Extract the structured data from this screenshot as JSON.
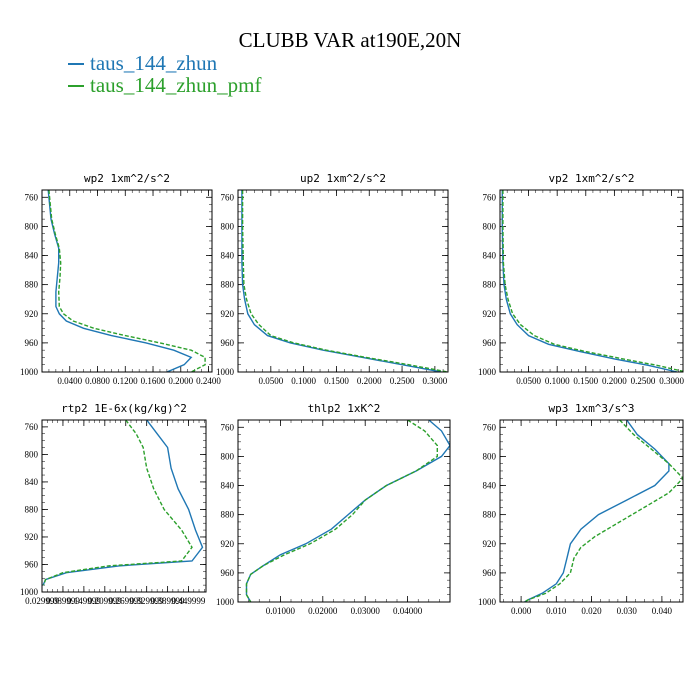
{
  "figure": {
    "title": "CLUBB VAR at190E,20N",
    "legend": [
      {
        "label": "taus_144_zhun",
        "color": "#1f77b4",
        "style": "solid"
      },
      {
        "label": "taus_144_zhun_pmf",
        "color": "#2ca02c",
        "style": "dashed"
      }
    ]
  },
  "chart_data": [
    {
      "type": "line",
      "title": "wp2  1xm^2/s^2",
      "xlim": [
        0.0,
        0.245
      ],
      "ylim": [
        1000,
        750
      ],
      "y_ticks": [
        "760",
        "800",
        "840",
        "880",
        "920",
        "960",
        "1000"
      ],
      "y_tick_values": [
        760,
        800,
        840,
        880,
        920,
        960,
        1000
      ],
      "x_ticks": [
        "0.0400",
        "0.0800",
        "0.1200",
        "0.1600",
        "0.2000",
        "0.2400"
      ],
      "x_tick_values": [
        0.04,
        0.08,
        0.12,
        0.16,
        0.2,
        0.24
      ],
      "series": [
        {
          "name": "taus_144_zhun",
          "color": "#1f77b4",
          "dash": false,
          "points": [
            [
              0.009,
              750
            ],
            [
              0.011,
              770
            ],
            [
              0.013,
              790
            ],
            [
              0.018,
              810
            ],
            [
              0.024,
              830
            ],
            [
              0.024,
              850
            ],
            [
              0.022,
              870
            ],
            [
              0.02,
              890
            ],
            [
              0.02,
              910
            ],
            [
              0.025,
              920
            ],
            [
              0.035,
              930
            ],
            [
              0.06,
              940
            ],
            [
              0.1,
              950
            ],
            [
              0.15,
              960
            ],
            [
              0.19,
              970
            ],
            [
              0.215,
              980
            ],
            [
              0.205,
              990
            ],
            [
              0.18,
              1000
            ]
          ]
        },
        {
          "name": "taus_144_zhun_pmf",
          "color": "#2ca02c",
          "dash": true,
          "points": [
            [
              0.01,
              750
            ],
            [
              0.012,
              770
            ],
            [
              0.014,
              790
            ],
            [
              0.019,
              810
            ],
            [
              0.025,
              830
            ],
            [
              0.027,
              850
            ],
            [
              0.026,
              870
            ],
            [
              0.024,
              890
            ],
            [
              0.025,
              910
            ],
            [
              0.031,
              920
            ],
            [
              0.045,
              930
            ],
            [
              0.075,
              940
            ],
            [
              0.12,
              950
            ],
            [
              0.17,
              960
            ],
            [
              0.215,
              970
            ],
            [
              0.235,
              980
            ],
            [
              0.235,
              990
            ],
            [
              0.215,
              1000
            ]
          ]
        }
      ]
    },
    {
      "type": "line",
      "title": "up2  1xm^2/s^2",
      "xlim": [
        0.0,
        0.32
      ],
      "ylim": [
        1000,
        750
      ],
      "y_ticks": [
        "760",
        "800",
        "840",
        "880",
        "920",
        "960",
        "1000"
      ],
      "y_tick_values": [
        760,
        800,
        840,
        880,
        920,
        960,
        1000
      ],
      "x_ticks": [
        "0.0500",
        "0.1000",
        "0.1500",
        "0.2000",
        "0.2500",
        "0.3000"
      ],
      "x_tick_values": [
        0.05,
        0.1,
        0.15,
        0.2,
        0.25,
        0.3
      ],
      "series": [
        {
          "name": "taus_144_zhun",
          "color": "#1f77b4",
          "dash": false,
          "points": [
            [
              0.006,
              750
            ],
            [
              0.006,
              800
            ],
            [
              0.006,
              850
            ],
            [
              0.007,
              880
            ],
            [
              0.01,
              900
            ],
            [
              0.015,
              920
            ],
            [
              0.025,
              935
            ],
            [
              0.045,
              950
            ],
            [
              0.08,
              960
            ],
            [
              0.13,
              970
            ],
            [
              0.19,
              980
            ],
            [
              0.25,
              990
            ],
            [
              0.31,
              1000
            ]
          ]
        },
        {
          "name": "taus_144_zhun_pmf",
          "color": "#2ca02c",
          "dash": true,
          "points": [
            [
              0.007,
              750
            ],
            [
              0.007,
              800
            ],
            [
              0.008,
              850
            ],
            [
              0.009,
              880
            ],
            [
              0.013,
              900
            ],
            [
              0.02,
              920
            ],
            [
              0.032,
              935
            ],
            [
              0.05,
              950
            ],
            [
              0.085,
              960
            ],
            [
              0.135,
              970
            ],
            [
              0.195,
              980
            ],
            [
              0.26,
              990
            ],
            [
              0.32,
              1000
            ]
          ]
        }
      ]
    },
    {
      "type": "line",
      "title": "vp2  1xm^2/s^2",
      "xlim": [
        0.0,
        0.32
      ],
      "ylim": [
        1000,
        750
      ],
      "y_ticks": [
        "760",
        "800",
        "840",
        "880",
        "920",
        "960",
        "1000"
      ],
      "y_tick_values": [
        760,
        800,
        840,
        880,
        920,
        960,
        1000
      ],
      "x_ticks": [
        "0.0500",
        "0.1000",
        "0.1500",
        "0.2000",
        "0.2500",
        "0.3000"
      ],
      "x_tick_values": [
        0.05,
        0.1,
        0.15,
        0.2,
        0.25,
        0.3
      ],
      "series": [
        {
          "name": "taus_144_zhun",
          "color": "#1f77b4",
          "dash": false,
          "points": [
            [
              0.004,
              750
            ],
            [
              0.004,
              800
            ],
            [
              0.005,
              850
            ],
            [
              0.007,
              880
            ],
            [
              0.011,
              900
            ],
            [
              0.018,
              920
            ],
            [
              0.03,
              935
            ],
            [
              0.05,
              950
            ],
            [
              0.085,
              962
            ],
            [
              0.14,
              972
            ],
            [
              0.2,
              982
            ],
            [
              0.26,
              991
            ],
            [
              0.31,
              1000
            ]
          ]
        },
        {
          "name": "taus_144_zhun_pmf",
          "color": "#2ca02c",
          "dash": true,
          "points": [
            [
              0.005,
              750
            ],
            [
              0.005,
              800
            ],
            [
              0.006,
              850
            ],
            [
              0.009,
              880
            ],
            [
              0.014,
              900
            ],
            [
              0.022,
              920
            ],
            [
              0.036,
              935
            ],
            [
              0.06,
              950
            ],
            [
              0.095,
              962
            ],
            [
              0.15,
              972
            ],
            [
              0.215,
              982
            ],
            [
              0.275,
              991
            ],
            [
              0.325,
              1000
            ]
          ]
        }
      ]
    },
    {
      "type": "line",
      "title": "rtp2  1E-6x(kg/kg)^2",
      "xlim": [
        0.02999,
        0.49999
      ],
      "ylim": [
        1000,
        750
      ],
      "y_ticks": [
        "760",
        "800",
        "840",
        "880",
        "920",
        "960",
        "1000"
      ],
      "y_tick_values": [
        760,
        800,
        840,
        880,
        920,
        960,
        1000
      ],
      "x_ticks": [
        "0.029999",
        "0.089999",
        "0.149999",
        "0.209999",
        "0.269999",
        "0.329999",
        "0.389999",
        "0.449999"
      ],
      "x_tick_values": [
        0.029999,
        0.089999,
        0.149999,
        0.209999,
        0.269999,
        0.329999,
        0.389999,
        0.449999
      ],
      "series": [
        {
          "name": "taus_144_zhun",
          "color": "#1f77b4",
          "dash": false,
          "points": [
            [
              0.33,
              750
            ],
            [
              0.36,
              770
            ],
            [
              0.39,
              790
            ],
            [
              0.4,
              820
            ],
            [
              0.42,
              850
            ],
            [
              0.45,
              880
            ],
            [
              0.47,
              910
            ],
            [
              0.49,
              935
            ],
            [
              0.46,
              955
            ],
            [
              0.25,
              962
            ],
            [
              0.1,
              972
            ],
            [
              0.04,
              982
            ],
            [
              0.033,
              990
            ]
          ]
        },
        {
          "name": "taus_144_zhun_pmf",
          "color": "#2ca02c",
          "dash": true,
          "points": [
            [
              0.27,
              750
            ],
            [
              0.3,
              770
            ],
            [
              0.32,
              790
            ],
            [
              0.33,
              820
            ],
            [
              0.35,
              850
            ],
            [
              0.38,
              880
            ],
            [
              0.43,
              910
            ],
            [
              0.46,
              935
            ],
            [
              0.43,
              955
            ],
            [
              0.22,
              962
            ],
            [
              0.09,
              972
            ],
            [
              0.04,
              982
            ],
            [
              0.035,
              990
            ]
          ]
        }
      ]
    },
    {
      "type": "line",
      "title": "thlp2  1xK^2",
      "xlim": [
        0.0,
        0.05
      ],
      "ylim": [
        1000,
        750
      ],
      "y_ticks": [
        "760",
        "800",
        "840",
        "880",
        "920",
        "960",
        "1000"
      ],
      "y_tick_values": [
        760,
        800,
        840,
        880,
        920,
        960,
        1000
      ],
      "x_ticks": [
        "0.01000",
        "0.02000",
        "0.03000",
        "0.04000"
      ],
      "x_tick_values": [
        0.01,
        0.02,
        0.03,
        0.04
      ],
      "series": [
        {
          "name": "taus_144_zhun",
          "color": "#1f77b4",
          "dash": false,
          "points": [
            [
              0.045,
              750
            ],
            [
              0.048,
              765
            ],
            [
              0.05,
              785
            ],
            [
              0.048,
              800
            ],
            [
              0.042,
              820
            ],
            [
              0.035,
              840
            ],
            [
              0.03,
              860
            ],
            [
              0.026,
              880
            ],
            [
              0.022,
              900
            ],
            [
              0.016,
              920
            ],
            [
              0.01,
              935
            ],
            [
              0.006,
              950
            ],
            [
              0.003,
              962
            ],
            [
              0.002,
              975
            ],
            [
              0.002,
              990
            ],
            [
              0.003,
              1000
            ]
          ]
        },
        {
          "name": "taus_144_zhun_pmf",
          "color": "#2ca02c",
          "dash": true,
          "points": [
            [
              0.04,
              750
            ],
            [
              0.044,
              765
            ],
            [
              0.047,
              785
            ],
            [
              0.047,
              800
            ],
            [
              0.042,
              820
            ],
            [
              0.035,
              840
            ],
            [
              0.03,
              860
            ],
            [
              0.027,
              880
            ],
            [
              0.023,
              900
            ],
            [
              0.017,
              920
            ],
            [
              0.011,
              935
            ],
            [
              0.006,
              950
            ],
            [
              0.003,
              962
            ],
            [
              0.002,
              975
            ],
            [
              0.002,
              990
            ],
            [
              0.003,
              1000
            ]
          ]
        }
      ]
    },
    {
      "type": "line",
      "title": "wp3  1xm^3/s^3",
      "xlim": [
        -0.006,
        0.046
      ],
      "ylim": [
        1000,
        750
      ],
      "y_ticks": [
        "760",
        "800",
        "840",
        "880",
        "920",
        "960",
        "1000"
      ],
      "y_tick_values": [
        760,
        800,
        840,
        880,
        920,
        960,
        1000
      ],
      "x_ticks": [
        "0.000",
        "0.010",
        "0.020",
        "0.030",
        "0.040"
      ],
      "x_tick_values": [
        0.0,
        0.01,
        0.02,
        0.03,
        0.04
      ],
      "series": [
        {
          "name": "taus_144_zhun",
          "color": "#1f77b4",
          "dash": false,
          "points": [
            [
              0.03,
              750
            ],
            [
              0.033,
              770
            ],
            [
              0.038,
              790
            ],
            [
              0.042,
              810
            ],
            [
              0.042,
              820
            ],
            [
              0.038,
              840
            ],
            [
              0.03,
              860
            ],
            [
              0.022,
              880
            ],
            [
              0.017,
              900
            ],
            [
              0.014,
              920
            ],
            [
              0.013,
              940
            ],
            [
              0.012,
              960
            ],
            [
              0.01,
              975
            ],
            [
              0.006,
              988
            ],
            [
              0.002,
              997
            ],
            [
              0.001,
              1000
            ]
          ]
        },
        {
          "name": "taus_144_zhun_pmf",
          "color": "#2ca02c",
          "dash": true,
          "points": [
            [
              0.028,
              750
            ],
            [
              0.032,
              770
            ],
            [
              0.037,
              790
            ],
            [
              0.042,
              810
            ],
            [
              0.046,
              830
            ],
            [
              0.042,
              850
            ],
            [
              0.035,
              870
            ],
            [
              0.028,
              890
            ],
            [
              0.021,
              910
            ],
            [
              0.017,
              925
            ],
            [
              0.015,
              940
            ],
            [
              0.014,
              960
            ],
            [
              0.011,
              975
            ],
            [
              0.007,
              988
            ],
            [
              0.002,
              997
            ],
            [
              0.001,
              1000
            ]
          ]
        }
      ]
    }
  ]
}
